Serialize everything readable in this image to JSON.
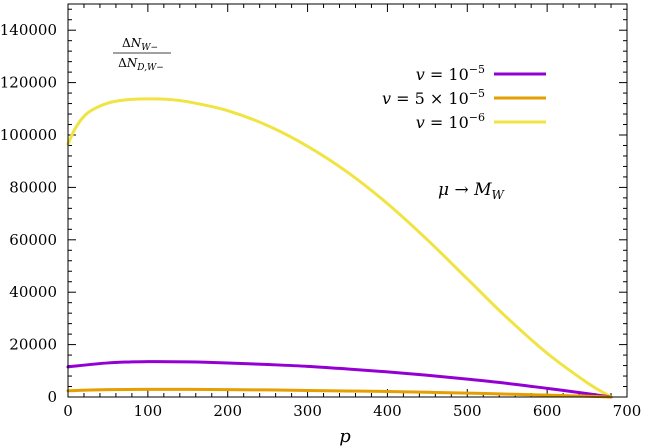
{
  "chart_data": {
    "type": "line",
    "title": "",
    "xlabel": "p",
    "ylabel": "",
    "xlim": [
      0,
      700
    ],
    "ylim": [
      0,
      150000
    ],
    "x_ticks": [
      0,
      100,
      200,
      300,
      400,
      500,
      600,
      700
    ],
    "y_ticks": [
      0,
      20000,
      40000,
      60000,
      80000,
      100000,
      120000,
      140000
    ],
    "grid": false,
    "legend_position": "top-right",
    "annotations": {
      "ratio_label": {
        "numerator": "ΔN_{W−}",
        "denominator": "ΔN_{D,W−}"
      },
      "limit_label": "μ → M_W"
    },
    "series": [
      {
        "name": "v = 10^{-5}",
        "color": "#9400d3",
        "x": [
          0,
          50,
          100,
          150,
          200,
          250,
          300,
          350,
          400,
          450,
          500,
          550,
          600,
          650,
          680
        ],
        "y": [
          11500,
          13000,
          13500,
          13400,
          13000,
          12400,
          11700,
          10700,
          9600,
          8300,
          6800,
          5200,
          3300,
          1300,
          0
        ]
      },
      {
        "name": "v = 5 × 10^{-5}",
        "color": "#e69f00",
        "x": [
          0,
          50,
          100,
          150,
          200,
          250,
          300,
          350,
          400,
          450,
          500,
          550,
          600,
          650,
          680
        ],
        "y": [
          2400,
          2800,
          2900,
          2900,
          2800,
          2700,
          2500,
          2300,
          2100,
          1800,
          1500,
          1100,
          700,
          300,
          0
        ]
      },
      {
        "name": "v = 10^{-6}",
        "color": "#f0e442",
        "x": [
          0,
          10,
          25,
          50,
          75,
          100,
          125,
          150,
          200,
          250,
          300,
          350,
          400,
          450,
          500,
          550,
          600,
          650,
          680
        ],
        "y": [
          96500,
          103000,
          108500,
          112200,
          113500,
          113800,
          113600,
          112700,
          109300,
          103600,
          95700,
          85800,
          73800,
          60000,
          45100,
          30200,
          16700,
          5500,
          0
        ]
      }
    ]
  }
}
